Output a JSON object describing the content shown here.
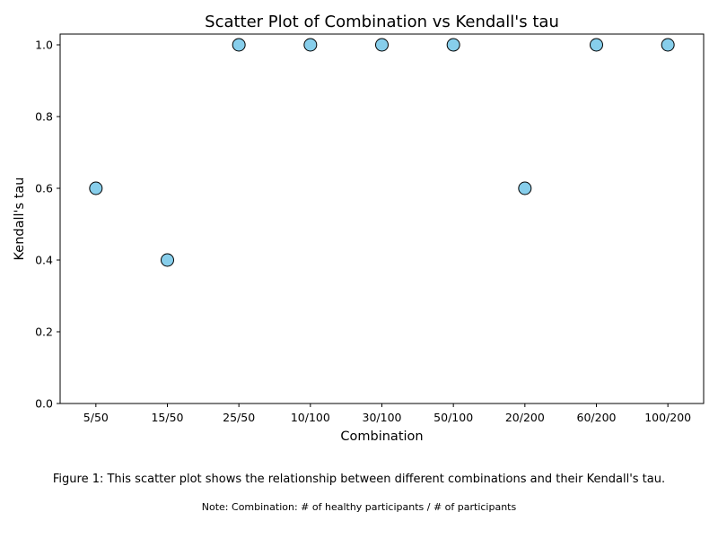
{
  "chart_data": {
    "type": "scatter",
    "title": "Scatter Plot of Combination vs Kendall's tau",
    "xlabel": "Combination",
    "ylabel": "Kendall's tau",
    "categories": [
      "5/50",
      "15/50",
      "25/50",
      "10/100",
      "30/100",
      "50/100",
      "20/200",
      "60/200",
      "100/200"
    ],
    "values": [
      0.6,
      0.4,
      1.0,
      1.0,
      1.0,
      1.0,
      0.6,
      1.0,
      1.0
    ],
    "ylim": [
      0,
      1.03
    ],
    "yticks": [
      0.0,
      0.2,
      0.4,
      0.6,
      0.8,
      1.0
    ],
    "grid": false,
    "legend": "none",
    "marker_color": "#87ceeb",
    "marker_edge_color": "#000000"
  },
  "captions": {
    "figure": "Figure 1: This scatter plot shows the relationship between different combinations and their Kendall's tau.",
    "note": "Note: Combination: # of healthy participants / # of participants"
  }
}
